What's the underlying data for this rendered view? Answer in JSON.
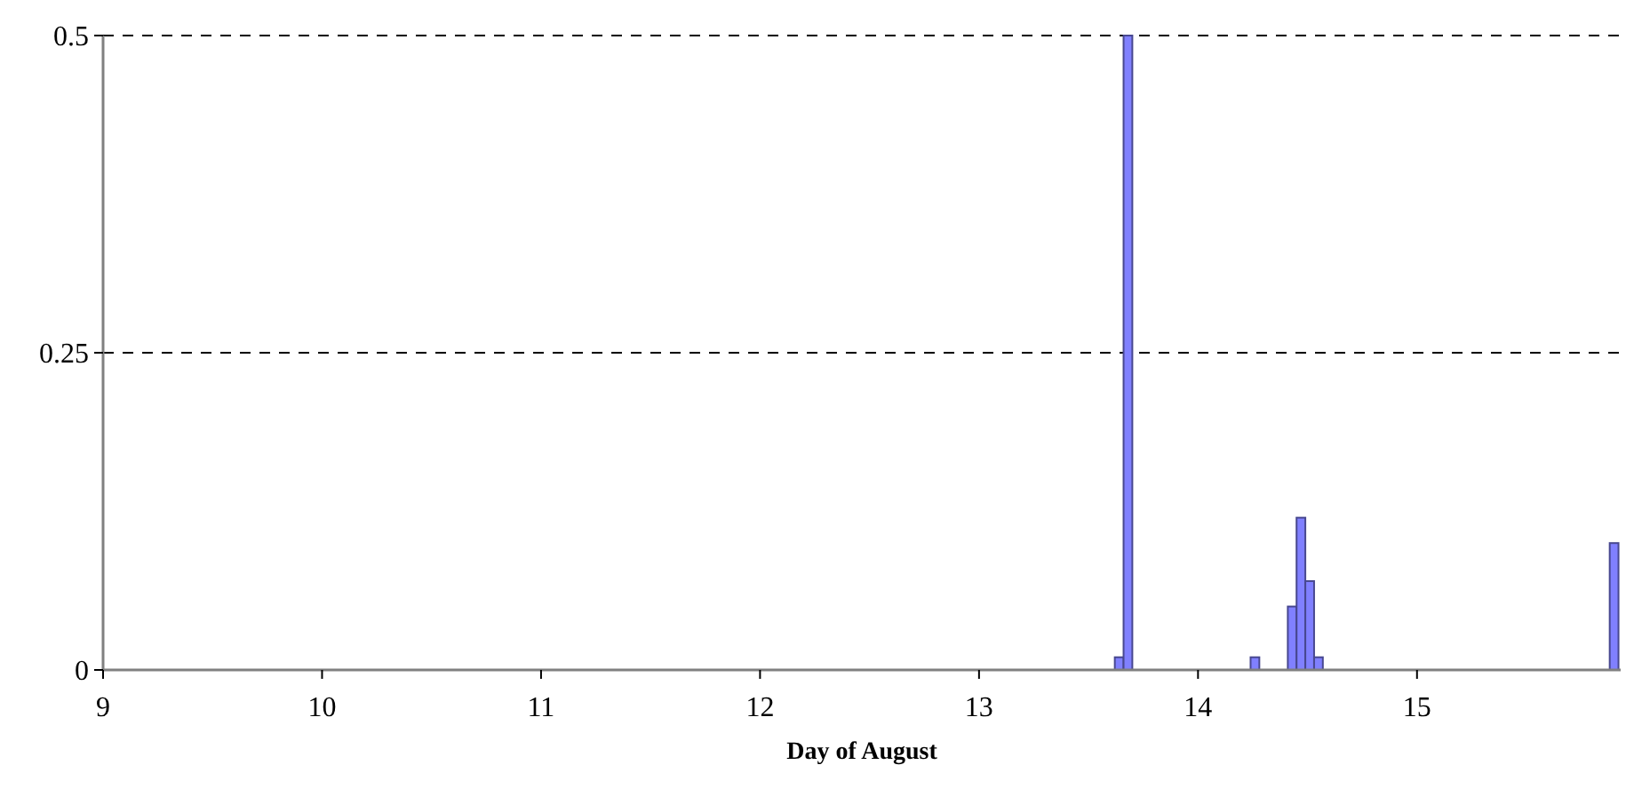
{
  "chart_data": {
    "type": "bar",
    "xlabel": "Day of August",
    "x": [
      13.64,
      13.68,
      14.26,
      14.43,
      14.47,
      14.51,
      14.55,
      15.9
    ],
    "values": [
      0.01,
      0.5,
      0.01,
      0.05,
      0.12,
      0.07,
      0.01,
      0.1
    ],
    "color": "#8080ff",
    "xlim": [
      9,
      15.93
    ],
    "xticks": [
      9,
      10,
      11,
      12,
      13,
      14,
      15
    ],
    "ylim": [
      0,
      0.5
    ],
    "yticks": [
      0,
      0.25,
      0.5
    ],
    "grid": "y"
  }
}
